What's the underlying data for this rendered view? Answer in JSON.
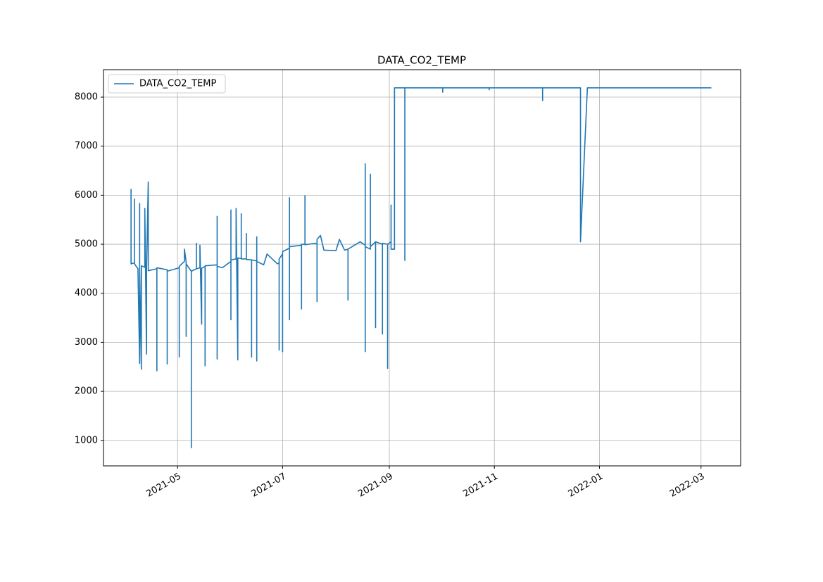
{
  "chart_data": {
    "type": "line",
    "title": "DATA_CO2_TEMP",
    "x": [
      "2021-04-04",
      "2021-04-04",
      "2021-04-04",
      "2021-04-06",
      "2021-04-06",
      "2021-04-06",
      "2021-04-08",
      "2021-04-09",
      "2021-04-09",
      "2021-04-09",
      "2021-04-10",
      "2021-04-10",
      "2021-04-12",
      "2021-04-12",
      "2021-04-13",
      "2021-04-13",
      "2021-04-14",
      "2021-04-14",
      "2021-04-19",
      "2021-04-19",
      "2021-04-19",
      "2021-04-25",
      "2021-04-25",
      "2021-04-25",
      "2021-05-02",
      "2021-05-02",
      "2021-05-02",
      "2021-05-05",
      "2021-05-05",
      "2021-05-06",
      "2021-05-06",
      "2021-05-06",
      "2021-05-09",
      "2021-05-09",
      "2021-05-09",
      "2021-05-12",
      "2021-05-12",
      "2021-05-12",
      "2021-05-14",
      "2021-05-14",
      "2021-05-15",
      "2021-05-15",
      "2021-05-17",
      "2021-05-17",
      "2021-05-17",
      "2021-05-24",
      "2021-05-24",
      "2021-05-24",
      "2021-05-24",
      "2021-05-27",
      "2021-06-01",
      "2021-06-01",
      "2021-06-01",
      "2021-06-01",
      "2021-06-04",
      "2021-06-04",
      "2021-06-05",
      "2021-06-05",
      "2021-06-07",
      "2021-06-07",
      "2021-06-07",
      "2021-06-10",
      "2021-06-10",
      "2021-06-10",
      "2021-06-13",
      "2021-06-13",
      "2021-06-13",
      "2021-06-16",
      "2021-06-16",
      "2021-06-16",
      "2021-06-16",
      "2021-06-20",
      "2021-06-22",
      "2021-06-28",
      "2021-06-29",
      "2021-06-29",
      "2021-06-29",
      "2021-07-01",
      "2021-07-01",
      "2021-07-01",
      "2021-07-05",
      "2021-07-05",
      "2021-07-05",
      "2021-07-05",
      "2021-07-12",
      "2021-07-12",
      "2021-07-12",
      "2021-07-14",
      "2021-07-14",
      "2021-07-14",
      "2021-07-20",
      "2021-07-21",
      "2021-07-21",
      "2021-07-21",
      "2021-07-23",
      "2021-07-25",
      "2021-08-01",
      "2021-08-03",
      "2021-08-06",
      "2021-08-08",
      "2021-08-08",
      "2021-08-08",
      "2021-08-15",
      "2021-08-18",
      "2021-08-18",
      "2021-08-18",
      "2021-08-18",
      "2021-08-21",
      "2021-08-21",
      "2021-08-21",
      "2021-08-24",
      "2021-08-24",
      "2021-08-24",
      "2021-08-28",
      "2021-08-28",
      "2021-08-28",
      "2021-08-31",
      "2021-08-31",
      "2021-08-31",
      "2021-09-02",
      "2021-09-02",
      "2021-09-02",
      "2021-09-04",
      "2021-09-04",
      "2021-09-10",
      "2021-09-10",
      "2021-09-10",
      "2021-10-02",
      "2021-10-02",
      "2021-10-02",
      "2021-10-29",
      "2021-10-29",
      "2021-10-29",
      "2021-11-29",
      "2021-11-29",
      "2021-11-29",
      "2021-12-21",
      "2021-12-21",
      "2021-12-25",
      "2022-03-07"
    ],
    "series": [
      {
        "name": "DATA_CO2_TEMP",
        "color": "#1f77b4",
        "values": [
          4600,
          6120,
          4600,
          4620,
          5920,
          4600,
          4500,
          2570,
          5830,
          4550,
          2450,
          4560,
          4530,
          5730,
          2760,
          4500,
          6270,
          4460,
          4500,
          2420,
          4520,
          4480,
          2560,
          4450,
          4520,
          2700,
          4550,
          4650,
          4900,
          4640,
          3120,
          4600,
          4450,
          850,
          4450,
          4500,
          5020,
          4500,
          4520,
          4980,
          3370,
          4510,
          4550,
          2520,
          4560,
          4580,
          5570,
          2660,
          4550,
          4520,
          4650,
          5700,
          3460,
          4680,
          4700,
          5730,
          2640,
          4720,
          4710,
          5620,
          4700,
          4700,
          5220,
          4690,
          4680,
          2700,
          4680,
          4660,
          5150,
          2620,
          4650,
          4580,
          4800,
          4600,
          4620,
          2840,
          4700,
          4800,
          2810,
          4850,
          4920,
          5950,
          3460,
          4950,
          4980,
          3680,
          5000,
          5000,
          5990,
          4990,
          5020,
          5000,
          3830,
          5100,
          5180,
          4880,
          4870,
          5100,
          4880,
          4900,
          3860,
          4900,
          5050,
          4980,
          2810,
          6640,
          4950,
          4900,
          6430,
          4950,
          5050,
          3300,
          5050,
          5000,
          3170,
          5020,
          5000,
          2470,
          5000,
          5050,
          5800,
          4900,
          4900,
          8190,
          8190,
          4670,
          8190,
          8190,
          8100,
          8190,
          8190,
          8150,
          8190,
          8190,
          7930,
          8190,
          8190,
          5050,
          8190,
          8190
        ]
      }
    ],
    "xlim": [
      "2021-03-19",
      "2022-03-24"
    ],
    "xticks": [
      {
        "value": "2021-05-01",
        "label": "2021-05"
      },
      {
        "value": "2021-07-01",
        "label": "2021-07"
      },
      {
        "value": "2021-09-01",
        "label": "2021-09"
      },
      {
        "value": "2021-11-01",
        "label": "2021-11"
      },
      {
        "value": "2022-01-01",
        "label": "2022-01"
      },
      {
        "value": "2022-03-01",
        "label": "2022-03"
      }
    ],
    "ylim": [
      480,
      8560
    ],
    "yticks": [
      1000,
      2000,
      3000,
      4000,
      5000,
      6000,
      7000,
      8000
    ],
    "grid": true,
    "legend": "upper left"
  }
}
